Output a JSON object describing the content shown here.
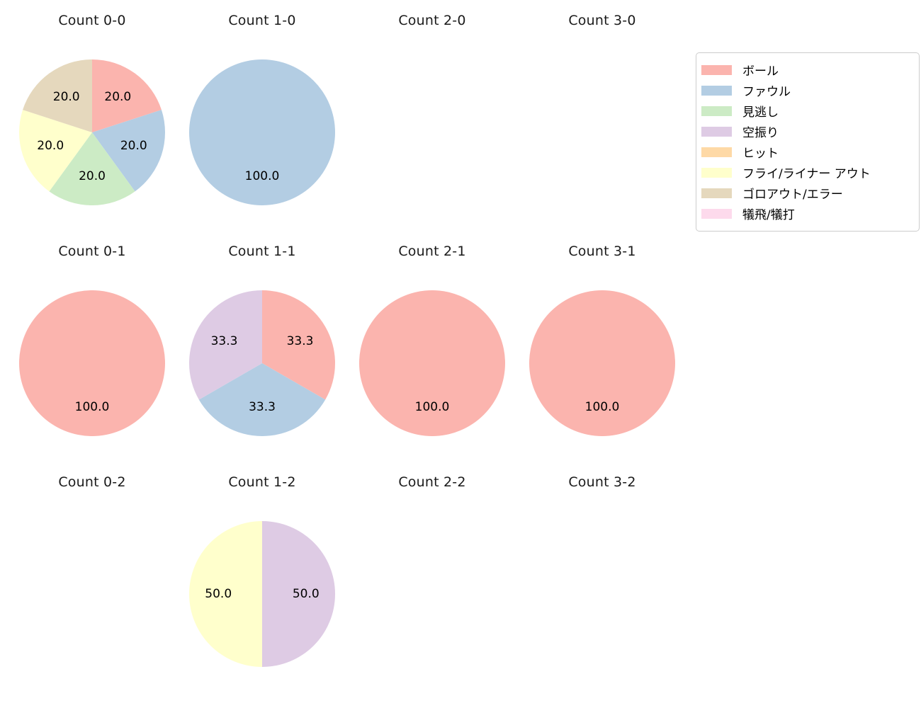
{
  "figure": {
    "background": "#ffffff",
    "text_color": "#000000",
    "title_color": "#1a1a1a",
    "legend_border_color": "#cccccc"
  },
  "legend": {
    "items": [
      {
        "label": "ボール",
        "color": "#fbb4ae"
      },
      {
        "label": "ファウル",
        "color": "#b3cde3"
      },
      {
        "label": "見逃し",
        "color": "#ccebc5"
      },
      {
        "label": "空振り",
        "color": "#decbe4"
      },
      {
        "label": "ヒット",
        "color": "#fed9a6"
      },
      {
        "label": "フライ/ライナー アウト",
        "color": "#ffffcc"
      },
      {
        "label": "ゴロアウト/エラー",
        "color": "#e5d8bd"
      },
      {
        "label": "犠飛/犠打",
        "color": "#fddaec"
      }
    ]
  },
  "chart_data": [
    {
      "type": "pie",
      "title": "Count 0-0",
      "start_angle": "top",
      "direction": "clockwise",
      "slices": [
        {
          "category": "ボール",
          "value": 20.0,
          "pct_label": "20.0"
        },
        {
          "category": "ファウル",
          "value": 20.0,
          "pct_label": "20.0"
        },
        {
          "category": "見逃し",
          "value": 20.0,
          "pct_label": "20.0"
        },
        {
          "category": "フライ/ライナー アウト",
          "value": 20.0,
          "pct_label": "20.0"
        },
        {
          "category": "ゴロアウト/エラー",
          "value": 20.0,
          "pct_label": "20.0"
        }
      ]
    },
    {
      "type": "pie",
      "title": "Count 1-0",
      "start_angle": "top",
      "direction": "clockwise",
      "slices": [
        {
          "category": "ファウル",
          "value": 100.0,
          "pct_label": "100.0"
        }
      ]
    },
    {
      "type": "pie",
      "title": "Count 2-0",
      "start_angle": "top",
      "direction": "clockwise",
      "slices": []
    },
    {
      "type": "pie",
      "title": "Count 3-0",
      "start_angle": "top",
      "direction": "clockwise",
      "slices": []
    },
    {
      "type": "pie",
      "title": "Count 0-1",
      "start_angle": "top",
      "direction": "clockwise",
      "slices": [
        {
          "category": "ボール",
          "value": 100.0,
          "pct_label": "100.0"
        }
      ]
    },
    {
      "type": "pie",
      "title": "Count 1-1",
      "start_angle": "top",
      "direction": "clockwise",
      "slices": [
        {
          "category": "ボール",
          "value": 33.3,
          "pct_label": "33.3"
        },
        {
          "category": "ファウル",
          "value": 33.3,
          "pct_label": "33.3"
        },
        {
          "category": "空振り",
          "value": 33.3,
          "pct_label": "33.3"
        }
      ]
    },
    {
      "type": "pie",
      "title": "Count 2-1",
      "start_angle": "top",
      "direction": "clockwise",
      "slices": [
        {
          "category": "ボール",
          "value": 100.0,
          "pct_label": "100.0"
        }
      ]
    },
    {
      "type": "pie",
      "title": "Count 3-1",
      "start_angle": "top",
      "direction": "clockwise",
      "slices": [
        {
          "category": "ボール",
          "value": 100.0,
          "pct_label": "100.0"
        }
      ]
    },
    {
      "type": "pie",
      "title": "Count 0-2",
      "start_angle": "top",
      "direction": "clockwise",
      "slices": []
    },
    {
      "type": "pie",
      "title": "Count 1-2",
      "start_angle": "top",
      "direction": "clockwise",
      "slices": [
        {
          "category": "空振り",
          "value": 50.0,
          "pct_label": "50.0"
        },
        {
          "category": "フライ/ライナー アウト",
          "value": 50.0,
          "pct_label": "50.0"
        }
      ]
    },
    {
      "type": "pie",
      "title": "Count 2-2",
      "start_angle": "top",
      "direction": "clockwise",
      "slices": []
    },
    {
      "type": "pie",
      "title": "Count 3-2",
      "start_angle": "top",
      "direction": "clockwise",
      "slices": []
    }
  ]
}
